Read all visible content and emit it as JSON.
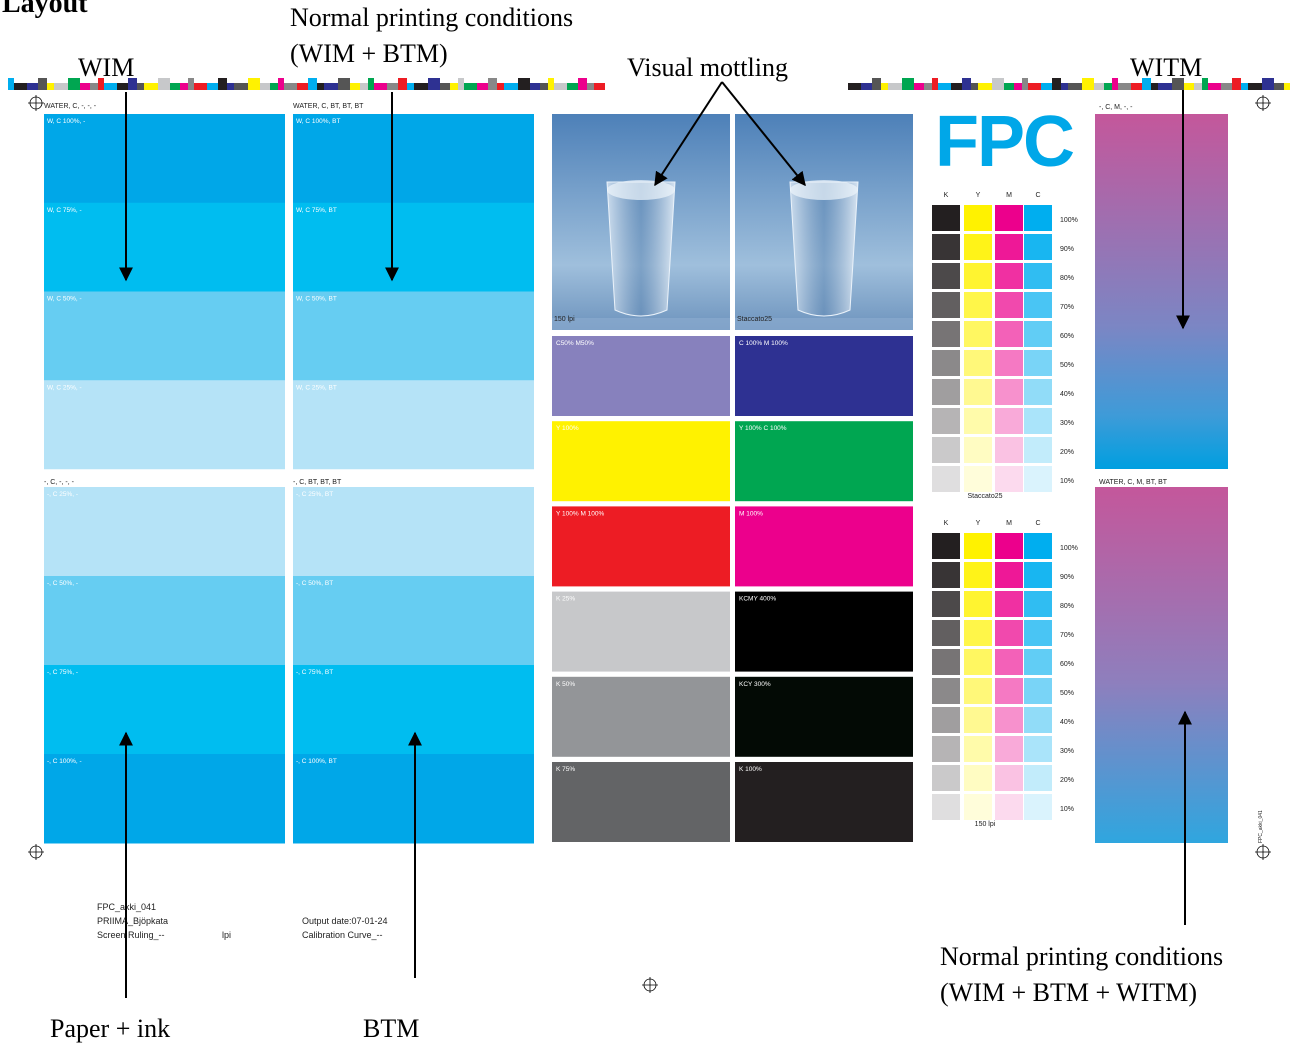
{
  "annotations": {
    "layout": "Layout",
    "normal_top": [
      "Normal printing conditions",
      "(WIM + BTM)"
    ],
    "wim": "WIM",
    "mottling": "Visual mottling",
    "witm": "WITM",
    "paper_ink": "Paper + ink",
    "btm": "BTM",
    "normal_bottom": [
      "Normal printing conditions",
      "(WIM + BTM + WITM)"
    ]
  },
  "columns": [
    {
      "top_header": "WATER, C, -, -, -",
      "top_patches": [
        "W, C 100%, -",
        "W, C 75%, -",
        "W, C 50%, -",
        "W, C 25%, -"
      ],
      "bottom_header": "-, C, -, -, -",
      "bottom_patches": [
        "-, C 25%, -",
        "-, C 50%, -",
        "-, C 75%, -",
        "-, C 100%, -"
      ]
    },
    {
      "top_header": "WATER, C, BT, BT, BT",
      "top_patches": [
        "W, C 100%, BT",
        "W, C 75%, BT",
        "W, C 50%, BT",
        "W, C 25%, BT"
      ],
      "bottom_header": "-, C, BT, BT, BT",
      "bottom_patches": [
        "-, C 25%, BT",
        "-, C 50%, BT",
        "-, C 75%, BT",
        "-, C 100%, BT"
      ]
    }
  ],
  "images": [
    "150 lpi",
    "Staccato25"
  ],
  "patches": [
    [
      "C50% M50%",
      "C 100% M 100%"
    ],
    [
      "Y 100%",
      "Y 100% C 100%"
    ],
    [
      "Y 100% M 100%",
      "M 100%"
    ],
    [
      "K 25%",
      "KCMY 400%"
    ],
    [
      "K 50%",
      "KCY 300%"
    ],
    [
      "K 75%",
      "K 100%"
    ]
  ],
  "logo": "FPC",
  "ramps": {
    "inks": [
      "K",
      "Y",
      "M",
      "C"
    ],
    "levels": [
      "100%",
      "90%",
      "80%",
      "70%",
      "60%",
      "50%",
      "40%",
      "30%",
      "20%",
      "10%"
    ],
    "captions": [
      "Staccato25",
      "150 lpi"
    ]
  },
  "gradients": [
    "-, C, M, -, -",
    "WATER, C, M, BT, BT"
  ],
  "side_code": "FPC_akki_041",
  "footer": {
    "job": "FPC_akki_041",
    "paper": "PRIIMA_Bjöpkata",
    "screen": "Screen Ruling_--",
    "lpi": "lpi",
    "date": "Output date:07-01-24",
    "curve": "Calibration Curve_--"
  }
}
